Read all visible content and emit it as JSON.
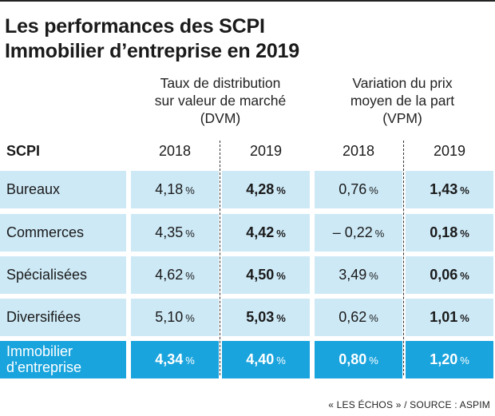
{
  "title_line1": "Les performances des SCPI",
  "title_line2": "Immobilier d’entreprise en 2019",
  "groups": {
    "dvm": [
      "Taux de distribution",
      "sur valeur de marché",
      "(DVM)"
    ],
    "vpm": [
      "Variation du prix",
      "moyen de la part",
      "(VPM)"
    ]
  },
  "headers": {
    "scpi": "SCPI",
    "y1": "2018",
    "y2": "2019",
    "y3": "2018",
    "y4": "2019"
  },
  "unit": "%",
  "rows": [
    {
      "label": "Bureaux",
      "dvm2018": "4,18",
      "dvm2019": "4,28",
      "vpm2018": "0,76",
      "vpm2019": "1,43"
    },
    {
      "label": "Commerces",
      "dvm2018": "4,35",
      "dvm2019": "4,42",
      "vpm2018": "– 0,22",
      "vpm2019": "0,18"
    },
    {
      "label": "Spécialisées",
      "dvm2018": "4,62",
      "dvm2019": "4,50",
      "vpm2018": "3,49",
      "vpm2019": "0,06"
    },
    {
      "label": "Diversifiées",
      "dvm2018": "5,10",
      "dvm2019": "5,03",
      "vpm2018": "0,62",
      "vpm2019": "1,01"
    }
  ],
  "total": {
    "label_line1": "Immobilier",
    "label_line2": "d’entreprise",
    "dvm2018": "4,34",
    "dvm2019": "4,40",
    "vpm2018": "0,80",
    "vpm2019": "1,20"
  },
  "source": "« LES ÉCHOS » / SOURCE : ASPIM",
  "colors": {
    "row_bg": "#cde9f6",
    "total_bg": "#1aa4dd",
    "total_text": "#ffffff"
  },
  "chart_data": {
    "type": "table",
    "title": "Les performances des SCPI Immobilier d’entreprise en 2019",
    "columns": [
      "SCPI",
      "DVM 2018",
      "DVM 2019",
      "VPM 2018",
      "VPM 2019"
    ],
    "rows": [
      [
        "Bureaux",
        4.18,
        4.28,
        0.76,
        1.43
      ],
      [
        "Commerces",
        4.35,
        4.42,
        -0.22,
        0.18
      ],
      [
        "Spécialisées",
        4.62,
        4.5,
        3.49,
        0.06
      ],
      [
        "Diversifiées",
        5.1,
        5.03,
        0.62,
        1.01
      ],
      [
        "Immobilier d’entreprise",
        4.34,
        4.4,
        0.8,
        1.2
      ]
    ],
    "unit": "%"
  }
}
